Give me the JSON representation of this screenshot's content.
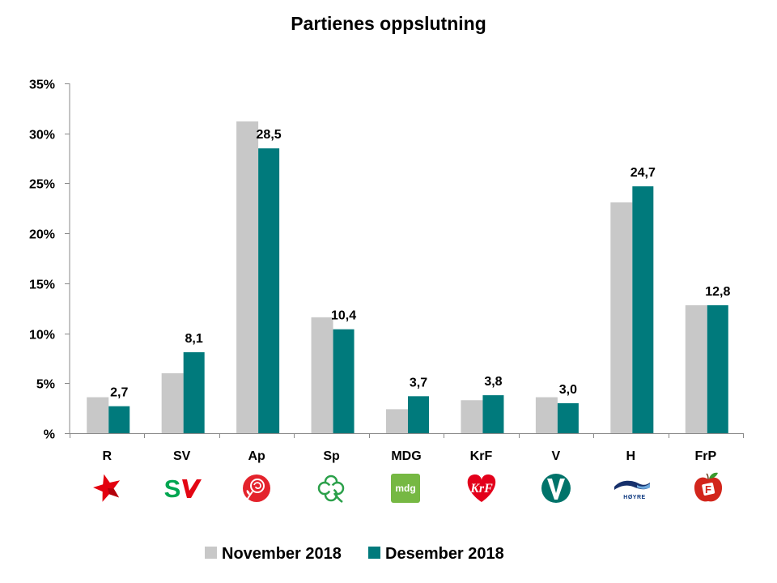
{
  "title": "Partienes oppslutning",
  "chart_data": {
    "type": "bar",
    "title": "Partienes oppslutning",
    "xlabel": "",
    "ylabel": "",
    "categories": [
      "R",
      "SV",
      "Ap",
      "Sp",
      "MDG",
      "KrF",
      "V",
      "H",
      "FrP"
    ],
    "series": [
      {
        "name": "November 2018",
        "color": "#c8c8c8",
        "values": [
          3.6,
          6.0,
          31.2,
          11.6,
          2.4,
          3.3,
          3.6,
          23.1,
          12.8
        ]
      },
      {
        "name": "Desember 2018",
        "color": "#007a7c",
        "values": [
          2.7,
          8.1,
          28.5,
          10.4,
          3.7,
          3.8,
          3.0,
          24.7,
          12.8
        ]
      }
    ],
    "data_labels": [
      "2,7",
      "8,1",
      "28,5",
      "10,4",
      "3,7",
      "3,8",
      "3,0",
      "24,7",
      "12,8"
    ],
    "ylim": [
      0,
      35
    ],
    "yticks": [
      35,
      30,
      25,
      20,
      15,
      10,
      5,
      0
    ],
    "ytick_labels": [
      "35%",
      "30%",
      "25%",
      "20%",
      "15%",
      "10%",
      "5%",
      "%"
    ],
    "grid": false,
    "legend_position": "bottom"
  },
  "logos": [
    {
      "icon": "rodt-star-icon",
      "text": ""
    },
    {
      "icon": "sv-logo-icon",
      "text": "S"
    },
    {
      "icon": "ap-rose-icon",
      "text": ""
    },
    {
      "icon": "sp-clover-icon",
      "text": ""
    },
    {
      "icon": "mdg-logo-icon",
      "text": "mdg"
    },
    {
      "icon": "krf-heart-icon",
      "text": "KrF"
    },
    {
      "icon": "venstre-logo-icon",
      "text": ""
    },
    {
      "icon": "hoyre-logo-icon",
      "text": "HØYRE"
    },
    {
      "icon": "frp-apple-icon",
      "text": "F"
    }
  ]
}
